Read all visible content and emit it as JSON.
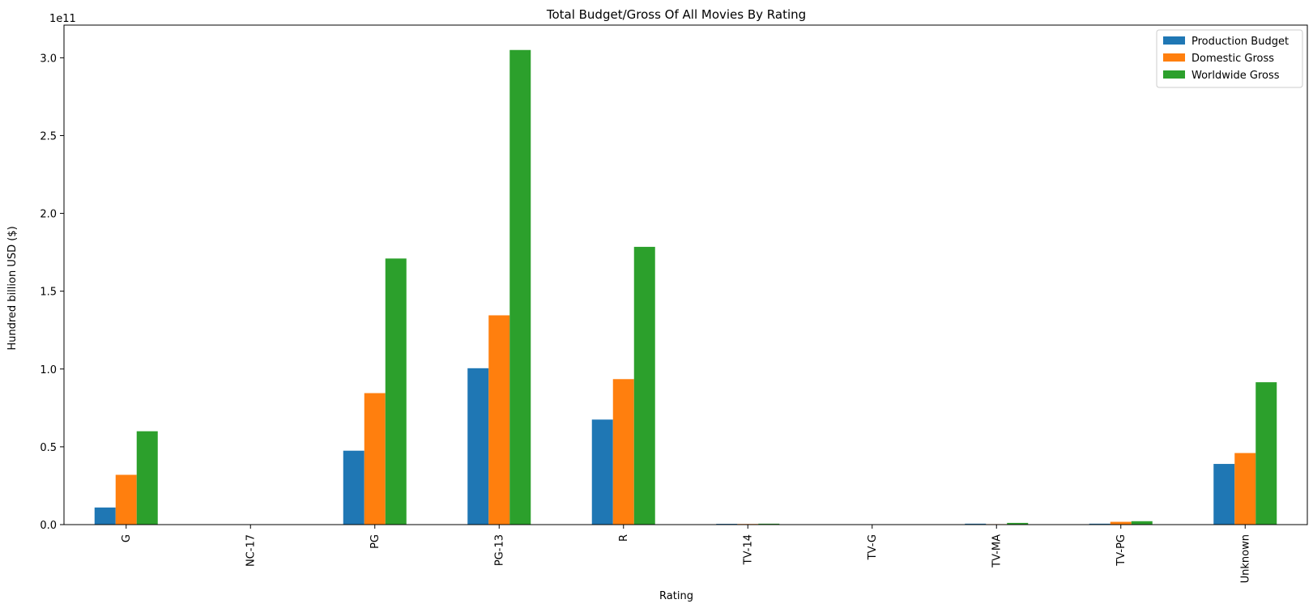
{
  "chart_data": {
    "type": "bar",
    "title": "Total Budget/Gross Of All Movies By Rating",
    "xlabel": "Rating",
    "ylabel": "Hundred billion USD ($)",
    "y_offset_label": "1e11",
    "y_scale": 100000000000,
    "categories": [
      "G",
      "NC-17",
      "PG",
      "PG-13",
      "R",
      "TV-14",
      "TV-G",
      "TV-MA",
      "TV-PG",
      "Unknown"
    ],
    "series": [
      {
        "name": "Production Budget",
        "color": "#1f77b4",
        "values": [
          0.11,
          0.0,
          0.475,
          1.005,
          0.675,
          0.005,
          0.0,
          0.006,
          0.006,
          0.39
        ]
      },
      {
        "name": "Domestic Gross",
        "color": "#ff7f0e",
        "values": [
          0.32,
          0.0,
          0.845,
          1.345,
          0.935,
          0.004,
          0.0,
          0.003,
          0.018,
          0.46
        ]
      },
      {
        "name": "Worldwide Gross",
        "color": "#2ca02c",
        "values": [
          0.6,
          0.0,
          1.71,
          3.05,
          1.785,
          0.006,
          0.0,
          0.011,
          0.022,
          0.915
        ]
      }
    ],
    "yticks": [
      "0.0",
      "0.5",
      "1.0",
      "1.5",
      "2.0",
      "2.5",
      "3.0"
    ],
    "ylim": [
      0,
      3.21
    ],
    "grid": false,
    "legend_position": "top-right"
  }
}
